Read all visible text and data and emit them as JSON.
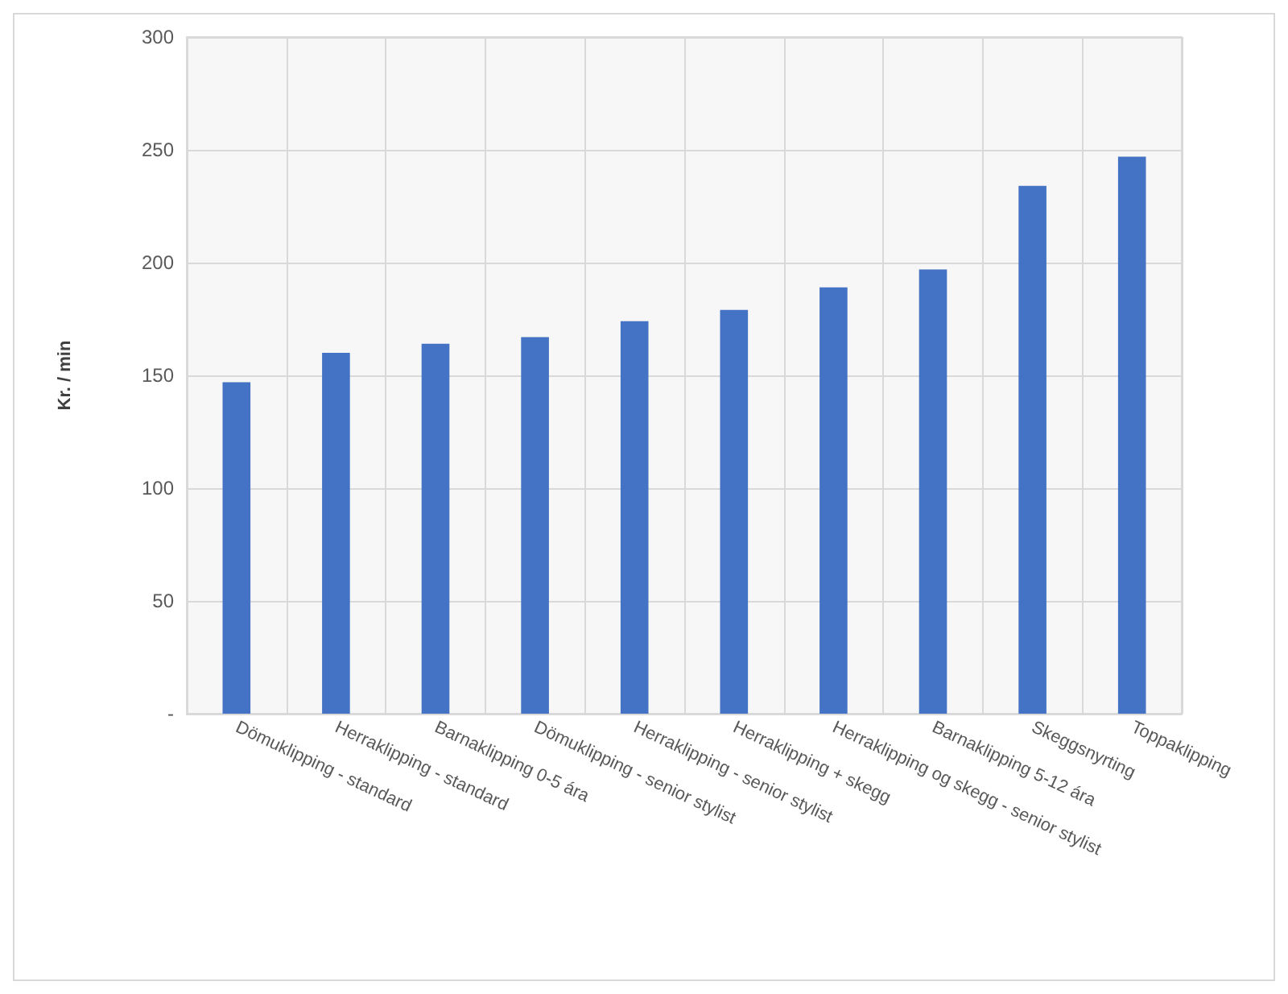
{
  "chart_data": {
    "type": "bar",
    "ylabel": "Kr. / min",
    "categories": [
      "Dömuklipping - standard",
      "Herraklipping - standard",
      "Barnaklipping 0-5 ára",
      "Dömuklipping - senior stylist",
      "Herraklipping - senior stylist",
      "Herraklipping + skegg",
      "Herraklipping og skegg - senior stylist",
      "Barnaklipping 5-12 ára",
      "Skeggsnyrting",
      "Toppaklipping"
    ],
    "values": [
      147,
      160,
      164,
      167,
      174,
      179,
      189,
      197,
      234,
      247
    ],
    "color": "#4472c4",
    "ylim": [
      0,
      300
    ],
    "yticks": [
      {
        "value": 0,
        "label": "-"
      },
      50,
      100,
      150,
      200,
      250,
      300
    ],
    "grid": true
  }
}
